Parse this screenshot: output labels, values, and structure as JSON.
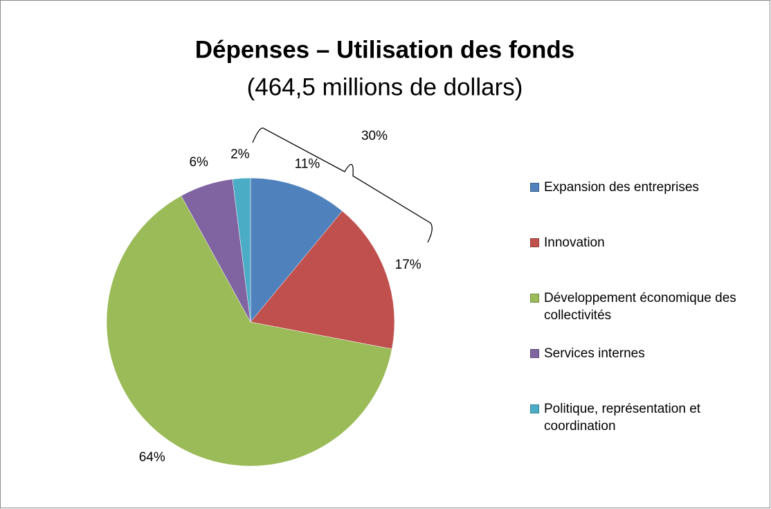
{
  "chart_data": {
    "type": "pie",
    "title": "Dépenses – Utilisation des fonds",
    "subtitle": "(464,5 millions de dollars)",
    "categories": [
      "Expansion des entreprises",
      "Innovation",
      "Développement économique des collectivités",
      "Services internes",
      "Politique, représentation et coordination"
    ],
    "values": [
      11,
      17,
      64,
      6,
      2
    ],
    "value_labels": [
      "11%",
      "17%",
      "64%",
      "6%",
      "2%"
    ],
    "colors": [
      "#4f81bd",
      "#c0504d",
      "#9bbb59",
      "#8064a2",
      "#4bacc6"
    ],
    "annotation": "30%",
    "legend": "right"
  }
}
